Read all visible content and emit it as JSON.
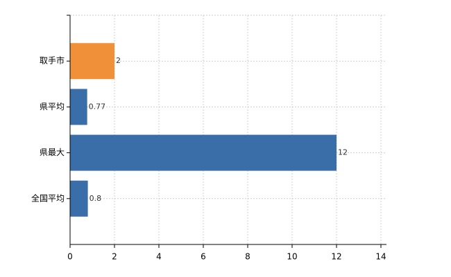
{
  "chart_data": {
    "type": "hbar",
    "categories": [
      "取手市",
      "県平均",
      "県最大",
      "全国平均"
    ],
    "values": [
      2,
      0.77,
      12,
      0.8
    ],
    "colors": [
      "#f0913a",
      "#3a6ea8",
      "#3a6ea8",
      "#3a6ea8"
    ],
    "xlim": [
      0,
      14.25
    ],
    "xticks": [
      0,
      2,
      4,
      6,
      8,
      10,
      12,
      14
    ],
    "grid": true
  }
}
